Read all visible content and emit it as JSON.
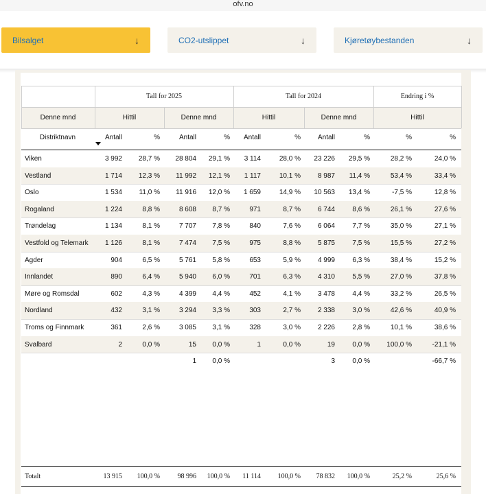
{
  "browser": {
    "url": "ofv.no"
  },
  "tabs": [
    {
      "label": "Bilsalget",
      "active": true
    },
    {
      "label": "CO2-utslippet",
      "active": false
    },
    {
      "label": "Kjøretøybestanden",
      "active": false
    }
  ],
  "table": {
    "group_headers": [
      "Tall for 2025",
      "Tall for 2024",
      "Endring i %"
    ],
    "sub_headers": [
      "Denne mnd",
      "Hittil",
      "Denne mnd",
      "Hittil",
      "Denne mnd",
      "Hittil"
    ],
    "col_headers": [
      "Distriktnavn",
      "Antall",
      "%",
      "Antall",
      "%",
      "Antall",
      "%",
      "Antall",
      "%",
      "%",
      "%"
    ],
    "rows": [
      [
        "Viken",
        "3 992",
        "28,7 %",
        "28 804",
        "29,1 %",
        "3 114",
        "28,0 %",
        "23 226",
        "29,5 %",
        "28,2 %",
        "24,0 %"
      ],
      [
        "Vestland",
        "1 714",
        "12,3 %",
        "11 992",
        "12,1 %",
        "1 117",
        "10,1 %",
        "8 987",
        "11,4 %",
        "53,4 %",
        "33,4 %"
      ],
      [
        "Oslo",
        "1 534",
        "11,0 %",
        "11 916",
        "12,0 %",
        "1 659",
        "14,9 %",
        "10 563",
        "13,4 %",
        "-7,5 %",
        "12,8 %"
      ],
      [
        "Rogaland",
        "1 224",
        "8,8 %",
        "8 608",
        "8,7 %",
        "971",
        "8,7 %",
        "6 744",
        "8,6 %",
        "26,1 %",
        "27,6 %"
      ],
      [
        "Trøndelag",
        "1 134",
        "8,1 %",
        "7 707",
        "7,8 %",
        "840",
        "7,6 %",
        "6 064",
        "7,7 %",
        "35,0 %",
        "27,1 %"
      ],
      [
        "Vestfold og Telemark",
        "1 126",
        "8,1 %",
        "7 474",
        "7,5 %",
        "975",
        "8,8 %",
        "5 875",
        "7,5 %",
        "15,5 %",
        "27,2 %"
      ],
      [
        "Agder",
        "904",
        "6,5 %",
        "5 761",
        "5,8 %",
        "653",
        "5,9 %",
        "4 999",
        "6,3 %",
        "38,4 %",
        "15,2 %"
      ],
      [
        "Innlandet",
        "890",
        "6,4 %",
        "5 940",
        "6,0 %",
        "701",
        "6,3 %",
        "4 310",
        "5,5 %",
        "27,0 %",
        "37,8 %"
      ],
      [
        "Møre og Romsdal",
        "602",
        "4,3 %",
        "4 399",
        "4,4 %",
        "452",
        "4,1 %",
        "3 478",
        "4,4 %",
        "33,2 %",
        "26,5 %"
      ],
      [
        "Nordland",
        "432",
        "3,1 %",
        "3 294",
        "3,3 %",
        "303",
        "2,7 %",
        "2 338",
        "3,0 %",
        "42,6 %",
        "40,9 %"
      ],
      [
        "Troms og Finnmark",
        "361",
        "2,6 %",
        "3 085",
        "3,1 %",
        "328",
        "3,0 %",
        "2 226",
        "2,8 %",
        "10,1 %",
        "38,6 %"
      ],
      [
        "Svalbard",
        "2",
        "0,0 %",
        "15",
        "0,0 %",
        "1",
        "0,0 %",
        "19",
        "0,0 %",
        "100,0 %",
        "-21,1 %"
      ],
      [
        "",
        "",
        "",
        "1",
        "0,0 %",
        "",
        "",
        "3",
        "0,0 %",
        "",
        "-66,7 %"
      ]
    ],
    "total": [
      "Totalt",
      "13 915",
      "100,0 %",
      "98 996",
      "100,0 %",
      "11 114",
      "100,0 %",
      "78 832",
      "100,0 %",
      "25,2 %",
      "25,6 %"
    ]
  },
  "colors": {
    "accent_tab": "#f8c234",
    "tab_bg": "#f4f1ea",
    "link": "#1f6fb5",
    "row_shade": "#f4f1ea"
  }
}
